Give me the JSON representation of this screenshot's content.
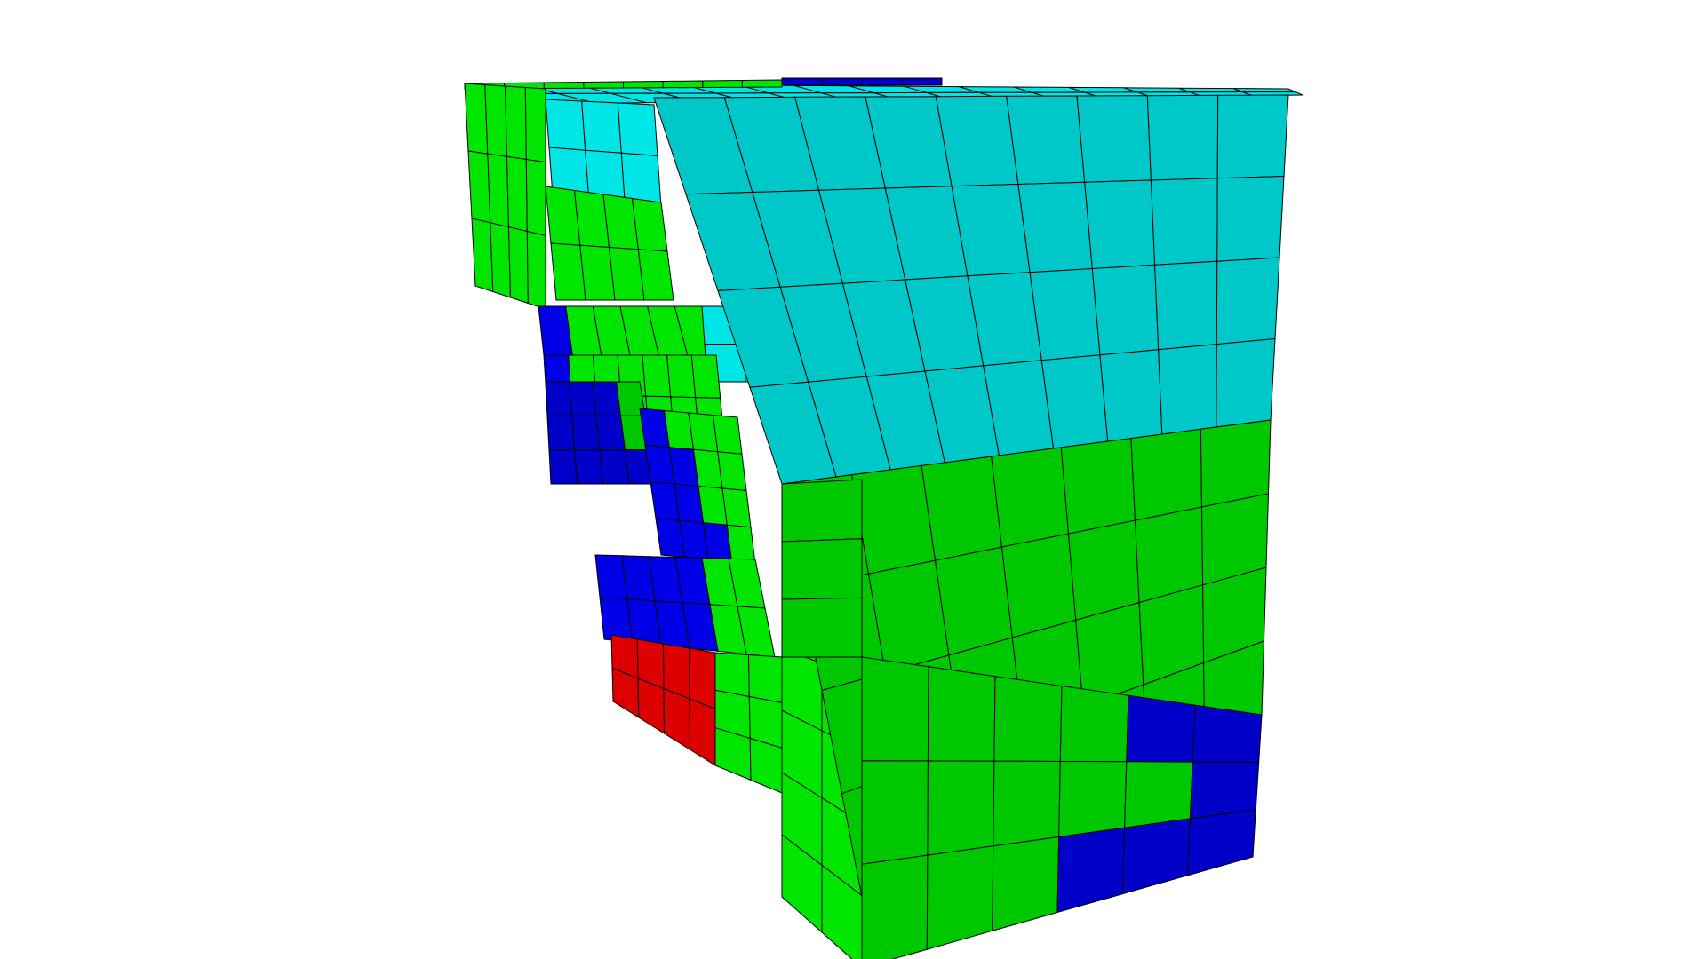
{
  "view": {
    "background": "#ffffff",
    "edge_color": "#000000"
  },
  "materials": {
    "cyan_block": {
      "color": "#00c8c8",
      "lit_color": "#00e6e6"
    },
    "green_block": {
      "color": "#00c800",
      "lit_color": "#00e600"
    },
    "blue_block": {
      "color": "#0000c8",
      "lit_color": "#0000e6"
    },
    "red_block": {
      "color": "#dd0000",
      "lit_color": "#e60000"
    }
  }
}
